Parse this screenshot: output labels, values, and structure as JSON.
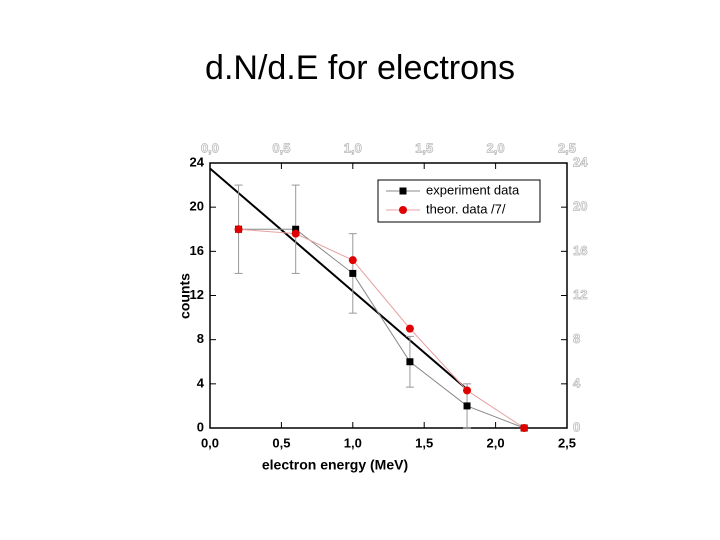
{
  "chart_data": {
    "type": "line",
    "title": "d.N/d.E for electrons",
    "x_label": "electron energy (MeV)",
    "y_label": "counts",
    "x": [
      0.2,
      0.6,
      1.0,
      1.4,
      1.8,
      2.2
    ],
    "series": [
      {
        "name": "experiment data",
        "color": "#000000",
        "marker": "square",
        "line_color": "#888888",
        "values": [
          18,
          18,
          14,
          6,
          2,
          0
        ],
        "errors": [
          4,
          4,
          3.6,
          2.3,
          2,
          0
        ]
      },
      {
        "name": "theor. data /7/",
        "color": "#e00000",
        "marker": "circle",
        "line_color": "#e8a0a0",
        "values": [
          18,
          17.6,
          15.2,
          9,
          3.4,
          0
        ]
      }
    ],
    "fit_line": {
      "x": [
        0,
        1.8
      ],
      "y": [
        23.5,
        3.5
      ],
      "color": "#000000"
    },
    "xlim": [
      0,
      2.5
    ],
    "ylim": [
      0,
      24
    ],
    "xticks": [
      {
        "value": 0,
        "label": "0,0"
      },
      {
        "value": 0.5,
        "label": "0,5"
      },
      {
        "value": 1,
        "label": "1,0"
      },
      {
        "value": 1.5,
        "label": "1,5"
      },
      {
        "value": 2,
        "label": "2,0"
      },
      {
        "value": 2.5,
        "label": "2,5"
      }
    ],
    "yticks": [
      0,
      4,
      8,
      12,
      16,
      20,
      24
    ],
    "grid": false,
    "legend": "upper right"
  }
}
